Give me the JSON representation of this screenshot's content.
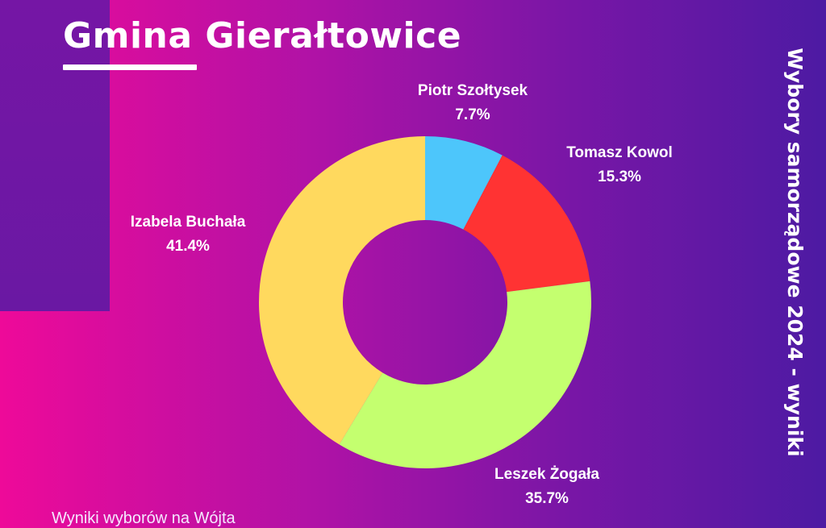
{
  "header": {
    "title": "Gmina Gierałtowice",
    "side_title": "Wybory samorządowe 2024 - wyniki",
    "footer": "Wyniki wyborów na Wójta"
  },
  "chart_data": {
    "type": "pie",
    "donut": true,
    "categories": [
      "Piotr Szołtysek",
      "Tomasz Kowol",
      "Leszek Żogała",
      "Izabela Buchała"
    ],
    "values": [
      7.7,
      15.3,
      35.7,
      41.4
    ],
    "labels": [
      "7.7%",
      "15.3%",
      "35.7%",
      "41.4%"
    ],
    "colors": [
      "#4dc6fb",
      "#ff3333",
      "#c4ff6f",
      "#ffd95e"
    ],
    "title": "",
    "legend": "none"
  }
}
